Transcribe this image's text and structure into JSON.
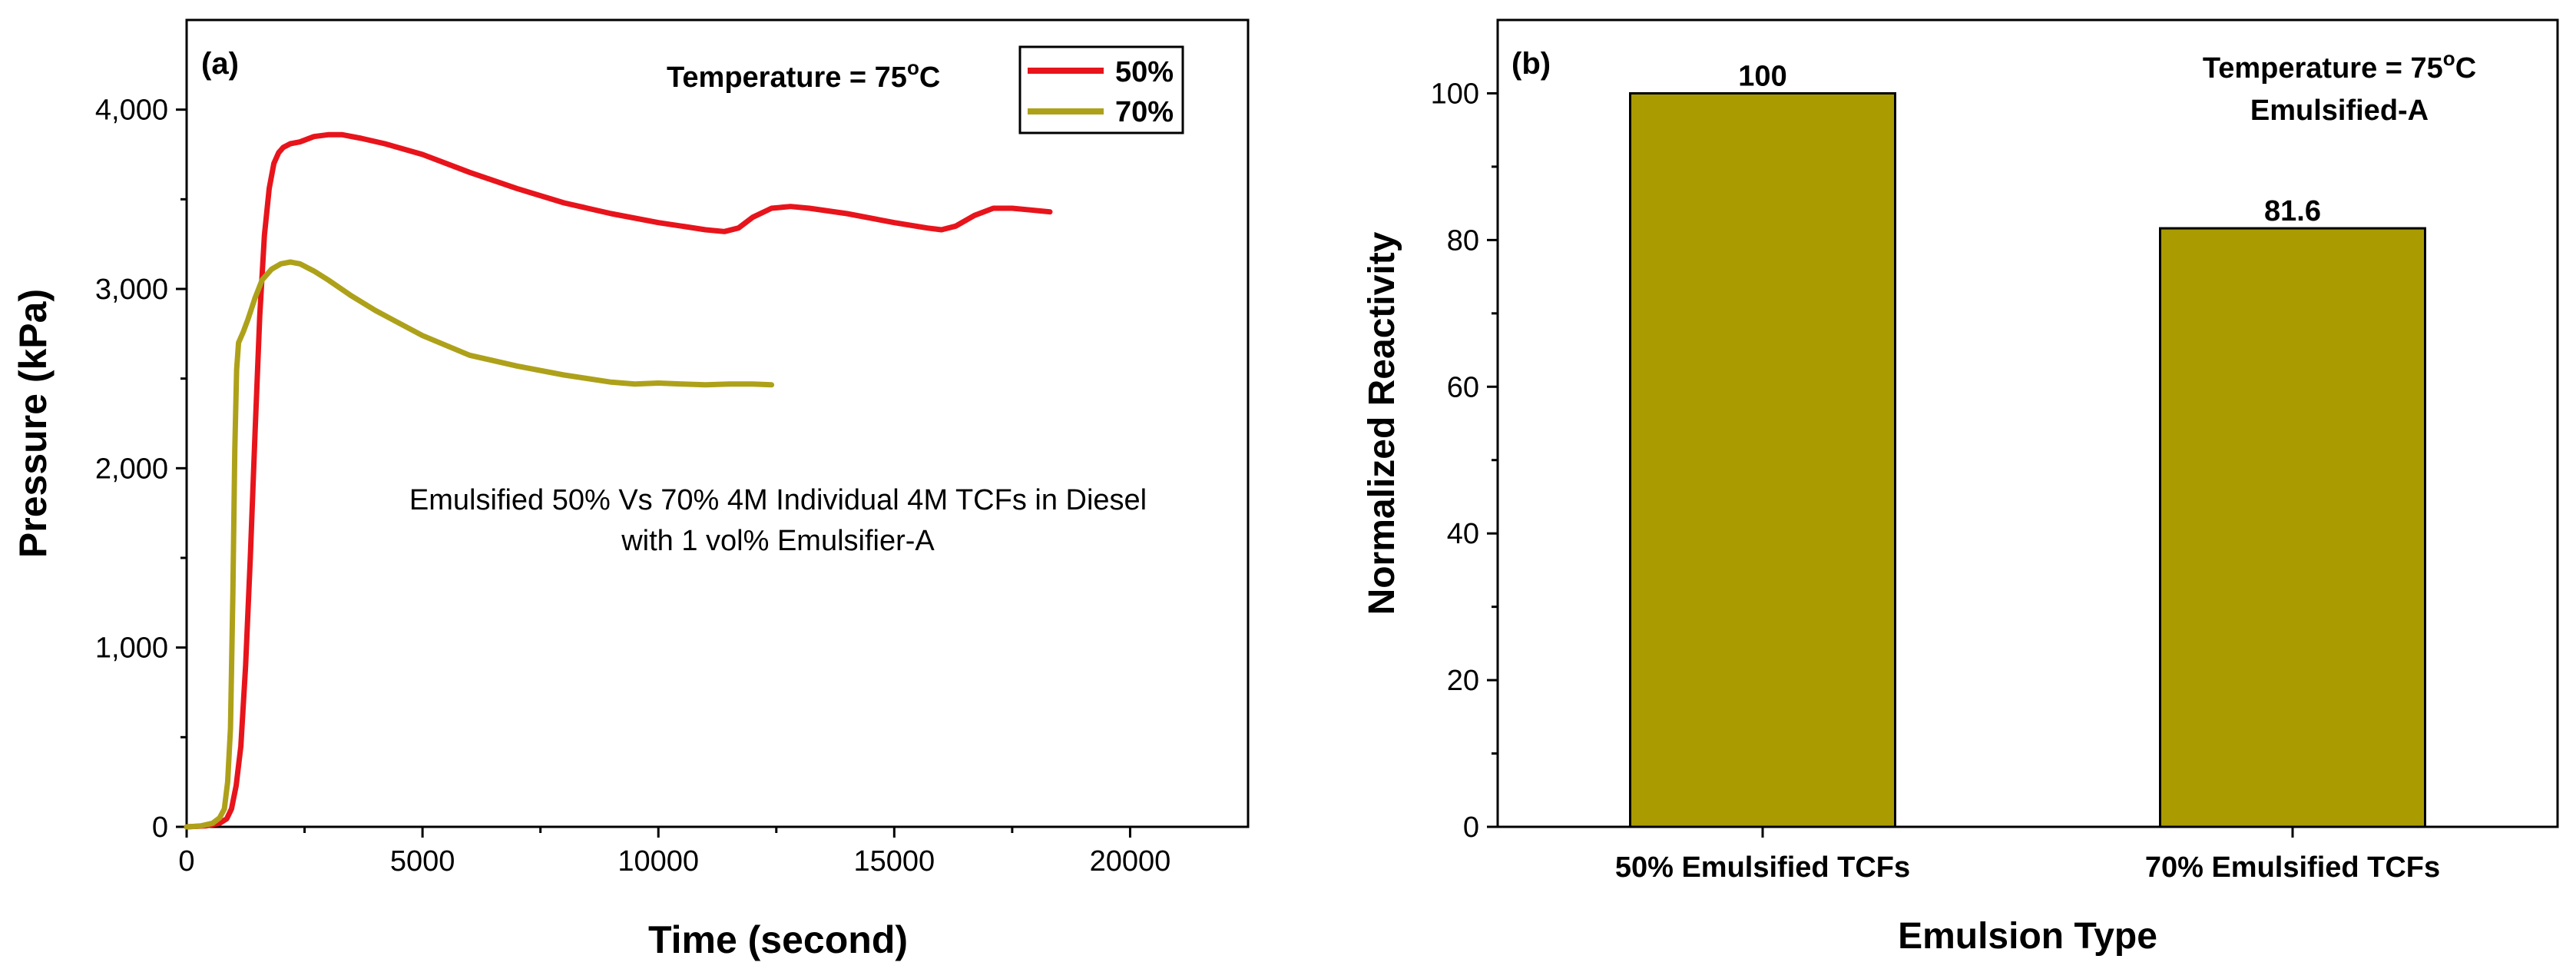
{
  "chart_data": [
    {
      "panel_label": "(a)",
      "type": "line",
      "xlabel": "Time (second)",
      "ylabel": "Pressure (kPa)",
      "xlim": [
        0,
        22500
      ],
      "ylim": [
        0,
        4500
      ],
      "x_ticks": [
        0,
        5000,
        10000,
        15000,
        20000
      ],
      "x_tick_labels": [
        "0",
        "5000",
        "10000",
        "15000",
        "20000"
      ],
      "y_ticks": [
        0,
        1000,
        2000,
        3000,
        4000
      ],
      "y_tick_labels": [
        "0",
        "1,000",
        "2,000",
        "3,000",
        "4,000"
      ],
      "temperature_annotation": "Temperature = 75",
      "degree_symbol": "o",
      "temperature_unit": "C",
      "description_line1": "Emulsified 50% Vs 70% 4M Individual 4M TCFs in Diesel",
      "description_line2": "with 1 vol% Emulsifier-A",
      "legend_position": "top-right",
      "grid": false,
      "series": [
        {
          "name": "50%",
          "color": "#e8141b",
          "x": [
            0,
            400,
            700,
            850,
            950,
            1050,
            1150,
            1250,
            1350,
            1450,
            1550,
            1650,
            1750,
            1850,
            1950,
            2050,
            2200,
            2400,
            2700,
            3000,
            3300,
            3700,
            4200,
            5000,
            6000,
            7000,
            8000,
            9000,
            10000,
            10500,
            11000,
            11400,
            11700,
            12000,
            12400,
            12800,
            13200,
            14000,
            15000,
            15700,
            16000,
            16300,
            16700,
            17100,
            17500,
            17900,
            18300
          ],
          "y": [
            0,
            5,
            20,
            45,
            100,
            230,
            450,
            900,
            1500,
            2200,
            2850,
            3300,
            3560,
            3700,
            3760,
            3790,
            3810,
            3820,
            3850,
            3860,
            3860,
            3840,
            3810,
            3750,
            3650,
            3560,
            3480,
            3420,
            3370,
            3350,
            3330,
            3320,
            3340,
            3400,
            3450,
            3460,
            3450,
            3420,
            3370,
            3340,
            3330,
            3350,
            3410,
            3450,
            3450,
            3440,
            3430
          ]
        },
        {
          "name": "70%",
          "color": "#aea11a",
          "x": [
            0,
            300,
            550,
            700,
            800,
            870,
            930,
            980,
            1020,
            1060,
            1100,
            1200,
            1300,
            1450,
            1600,
            1800,
            2000,
            2200,
            2400,
            2700,
            3000,
            3500,
            4000,
            5000,
            6000,
            7000,
            8000,
            9000,
            9500,
            10000,
            10500,
            11000,
            11500,
            12000,
            12400
          ],
          "y": [
            0,
            5,
            20,
            50,
            100,
            250,
            550,
            1300,
            2100,
            2550,
            2700,
            2760,
            2830,
            2950,
            3050,
            3110,
            3140,
            3150,
            3140,
            3100,
            3050,
            2960,
            2880,
            2740,
            2630,
            2570,
            2520,
            2480,
            2470,
            2475,
            2470,
            2465,
            2470,
            2470,
            2465
          ]
        }
      ]
    },
    {
      "panel_label": "(b)",
      "type": "bar",
      "xlabel": "Emulsion Type",
      "ylabel": "Normalized Reactivity",
      "ylim": [
        0,
        110
      ],
      "y_ticks": [
        0,
        20,
        40,
        60,
        80,
        100
      ],
      "y_tick_labels": [
        "0",
        "20",
        "40",
        "60",
        "80",
        "100"
      ],
      "temperature_annotation": "Temperature = 75",
      "degree_symbol": "o",
      "temperature_unit": "C",
      "emulsifier_annotation": "Emulsified-A",
      "bar_color": "#aa9b00",
      "grid": false,
      "categories": [
        "50% Emulsified TCFs",
        "70% Emulsified TCFs"
      ],
      "values": [
        100,
        81.6
      ],
      "value_labels": [
        "100",
        "81.6"
      ]
    }
  ]
}
